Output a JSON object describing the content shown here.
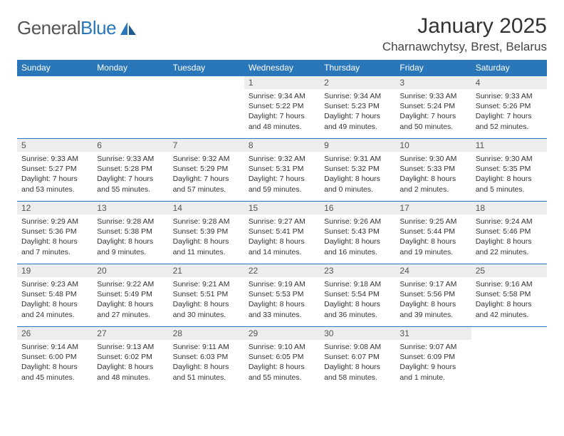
{
  "logo": {
    "text_a": "General",
    "text_b": "Blue"
  },
  "title": "January 2025",
  "location": "Charnawchytsy, Brest, Belarus",
  "colors": {
    "header_bg": "#2976b9",
    "header_text": "#ffffff",
    "daynum_bg": "#ededed",
    "border": "#2976b9",
    "page_bg": "#ffffff",
    "text": "#333333"
  },
  "weekdays": [
    "Sunday",
    "Monday",
    "Tuesday",
    "Wednesday",
    "Thursday",
    "Friday",
    "Saturday"
  ],
  "weeks": [
    [
      null,
      null,
      null,
      {
        "n": "1",
        "sr": "9:34 AM",
        "ss": "5:22 PM",
        "dh": "7",
        "dm": "48 minutes"
      },
      {
        "n": "2",
        "sr": "9:34 AM",
        "ss": "5:23 PM",
        "dh": "7",
        "dm": "49 minutes"
      },
      {
        "n": "3",
        "sr": "9:33 AM",
        "ss": "5:24 PM",
        "dh": "7",
        "dm": "50 minutes"
      },
      {
        "n": "4",
        "sr": "9:33 AM",
        "ss": "5:26 PM",
        "dh": "7",
        "dm": "52 minutes"
      }
    ],
    [
      {
        "n": "5",
        "sr": "9:33 AM",
        "ss": "5:27 PM",
        "dh": "7",
        "dm": "53 minutes"
      },
      {
        "n": "6",
        "sr": "9:33 AM",
        "ss": "5:28 PM",
        "dh": "7",
        "dm": "55 minutes"
      },
      {
        "n": "7",
        "sr": "9:32 AM",
        "ss": "5:29 PM",
        "dh": "7",
        "dm": "57 minutes"
      },
      {
        "n": "8",
        "sr": "9:32 AM",
        "ss": "5:31 PM",
        "dh": "7",
        "dm": "59 minutes"
      },
      {
        "n": "9",
        "sr": "9:31 AM",
        "ss": "5:32 PM",
        "dh": "8",
        "dm": "0 minutes"
      },
      {
        "n": "10",
        "sr": "9:30 AM",
        "ss": "5:33 PM",
        "dh": "8",
        "dm": "2 minutes"
      },
      {
        "n": "11",
        "sr": "9:30 AM",
        "ss": "5:35 PM",
        "dh": "8",
        "dm": "5 minutes"
      }
    ],
    [
      {
        "n": "12",
        "sr": "9:29 AM",
        "ss": "5:36 PM",
        "dh": "8",
        "dm": "7 minutes"
      },
      {
        "n": "13",
        "sr": "9:28 AM",
        "ss": "5:38 PM",
        "dh": "8",
        "dm": "9 minutes"
      },
      {
        "n": "14",
        "sr": "9:28 AM",
        "ss": "5:39 PM",
        "dh": "8",
        "dm": "11 minutes"
      },
      {
        "n": "15",
        "sr": "9:27 AM",
        "ss": "5:41 PM",
        "dh": "8",
        "dm": "14 minutes"
      },
      {
        "n": "16",
        "sr": "9:26 AM",
        "ss": "5:43 PM",
        "dh": "8",
        "dm": "16 minutes"
      },
      {
        "n": "17",
        "sr": "9:25 AM",
        "ss": "5:44 PM",
        "dh": "8",
        "dm": "19 minutes"
      },
      {
        "n": "18",
        "sr": "9:24 AM",
        "ss": "5:46 PM",
        "dh": "8",
        "dm": "22 minutes"
      }
    ],
    [
      {
        "n": "19",
        "sr": "9:23 AM",
        "ss": "5:48 PM",
        "dh": "8",
        "dm": "24 minutes"
      },
      {
        "n": "20",
        "sr": "9:22 AM",
        "ss": "5:49 PM",
        "dh": "8",
        "dm": "27 minutes"
      },
      {
        "n": "21",
        "sr": "9:21 AM",
        "ss": "5:51 PM",
        "dh": "8",
        "dm": "30 minutes"
      },
      {
        "n": "22",
        "sr": "9:19 AM",
        "ss": "5:53 PM",
        "dh": "8",
        "dm": "33 minutes"
      },
      {
        "n": "23",
        "sr": "9:18 AM",
        "ss": "5:54 PM",
        "dh": "8",
        "dm": "36 minutes"
      },
      {
        "n": "24",
        "sr": "9:17 AM",
        "ss": "5:56 PM",
        "dh": "8",
        "dm": "39 minutes"
      },
      {
        "n": "25",
        "sr": "9:16 AM",
        "ss": "5:58 PM",
        "dh": "8",
        "dm": "42 minutes"
      }
    ],
    [
      {
        "n": "26",
        "sr": "9:14 AM",
        "ss": "6:00 PM",
        "dh": "8",
        "dm": "45 minutes"
      },
      {
        "n": "27",
        "sr": "9:13 AM",
        "ss": "6:02 PM",
        "dh": "8",
        "dm": "48 minutes"
      },
      {
        "n": "28",
        "sr": "9:11 AM",
        "ss": "6:03 PM",
        "dh": "8",
        "dm": "51 minutes"
      },
      {
        "n": "29",
        "sr": "9:10 AM",
        "ss": "6:05 PM",
        "dh": "8",
        "dm": "55 minutes"
      },
      {
        "n": "30",
        "sr": "9:08 AM",
        "ss": "6:07 PM",
        "dh": "8",
        "dm": "58 minutes"
      },
      {
        "n": "31",
        "sr": "9:07 AM",
        "ss": "6:09 PM",
        "dh": "9",
        "dm": "1 minute"
      },
      null
    ]
  ]
}
